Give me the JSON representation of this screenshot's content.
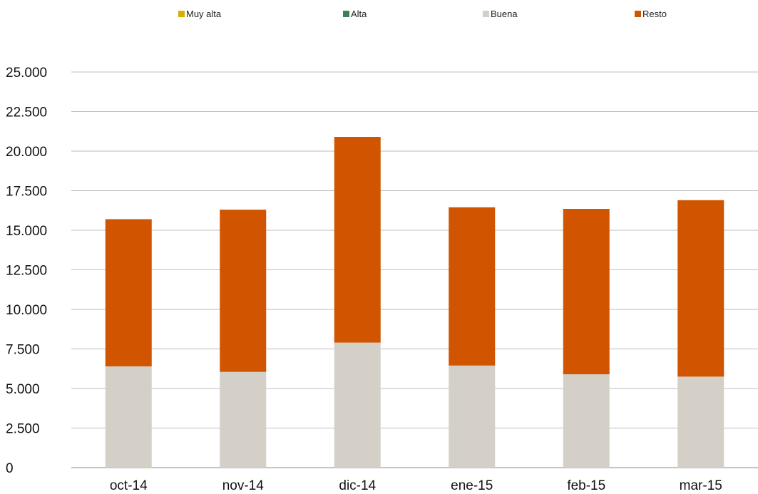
{
  "chart_data": {
    "type": "bar",
    "stacked": true,
    "categories": [
      "oct-14",
      "nov-14",
      "dic-14",
      "ene-15",
      "feb-15",
      "mar-15"
    ],
    "series": [
      {
        "name": "Muy alta",
        "color": "#d4b100",
        "values": [
          0,
          0,
          0,
          0,
          0,
          0
        ]
      },
      {
        "name": "Alta",
        "color": "#3f7f5a",
        "values": [
          0,
          0,
          0,
          0,
          0,
          0
        ]
      },
      {
        "name": "Buena",
        "color": "#d5d0c7",
        "values": [
          6400,
          6050,
          7900,
          6450,
          5900,
          5750
        ]
      },
      {
        "name": "Resto",
        "color": "#d15400",
        "values": [
          9300,
          10250,
          13000,
          10000,
          10450,
          11150
        ]
      }
    ],
    "ylim": [
      0,
      25000
    ],
    "yticks": [
      0,
      2500,
      5000,
      7500,
      10000,
      12500,
      15000,
      17500,
      20000,
      22500,
      25000
    ],
    "ytick_labels": [
      "0",
      "2.500",
      "5.000",
      "7.500",
      "10.000",
      "12.500",
      "15.000",
      "17.500",
      "20.000",
      "22.500",
      "25.000"
    ],
    "grid": true,
    "legend_position": "top"
  }
}
